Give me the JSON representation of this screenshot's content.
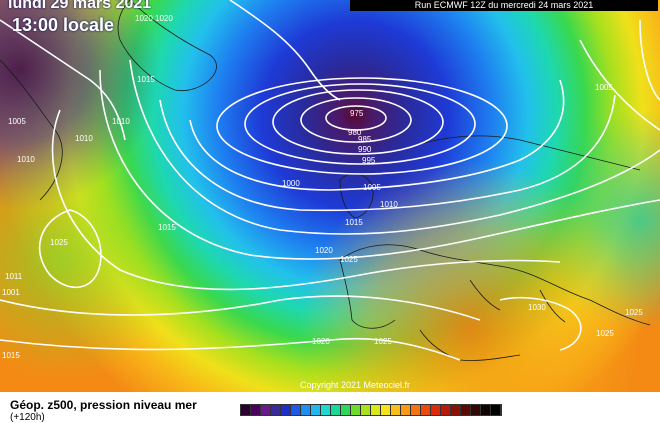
{
  "header": {
    "date": "lundi 29 mars 2021",
    "local_time": "13:00 locale",
    "run": "Run ECMWF 12Z du mercredi 24 mars 2021"
  },
  "footer": {
    "copyright": "Copyright 2021 Meteociel.fr",
    "legend_title": "Géop. z500, pression niveau mer",
    "legend_subtitle": "(+120h)"
  },
  "isobars": [
    {
      "value": "975",
      "id": "iso-975"
    },
    {
      "value": "980",
      "id": "iso-980"
    },
    {
      "value": "985",
      "id": "iso-985"
    },
    {
      "value": "990",
      "id": "iso-990"
    },
    {
      "value": "995",
      "id": "iso-995"
    },
    {
      "value": "1000",
      "id": "iso-1000"
    },
    {
      "value": "1005",
      "id": "iso-1005-a"
    },
    {
      "value": "1005",
      "id": "iso-1005-b"
    },
    {
      "value": "1005",
      "id": "iso-1005-c"
    },
    {
      "value": "1010",
      "id": "iso-1010-a"
    },
    {
      "value": "1010",
      "id": "iso-1010-b"
    },
    {
      "value": "1010",
      "id": "iso-1010-c"
    },
    {
      "value": "1010",
      "id": "iso-1010-d"
    },
    {
      "value": "1015",
      "id": "iso-1015-a"
    },
    {
      "value": "1015",
      "id": "iso-1015-b"
    },
    {
      "value": "1015",
      "id": "iso-1015-c"
    },
    {
      "value": "1015",
      "id": "iso-1015-d"
    },
    {
      "value": "1020",
      "id": "iso-1020-a"
    },
    {
      "value": "1020",
      "id": "iso-1020-b"
    },
    {
      "value": "1020",
      "id": "iso-1020-c"
    },
    {
      "value": "1020",
      "id": "iso-1020-d"
    },
    {
      "value": "1025",
      "id": "iso-1025-a"
    },
    {
      "value": "1025",
      "id": "iso-1025-b"
    },
    {
      "value": "1025",
      "id": "iso-1025-c"
    },
    {
      "value": "1025",
      "id": "iso-1025-d"
    },
    {
      "value": "1025",
      "id": "iso-1025-e"
    },
    {
      "value": "1030",
      "id": "iso-1030"
    },
    {
      "value": "1011",
      "id": "iso-1011"
    },
    {
      "value": "1001",
      "id": "iso-1001"
    }
  ],
  "color_scale": [
    "#2a0030",
    "#4b0060",
    "#6a1a8a",
    "#3a2a9a",
    "#1e2fc8",
    "#1f5ae6",
    "#1e8ef0",
    "#22b7ef",
    "#1fd7d0",
    "#19d99a",
    "#2cd85a",
    "#6ddc2a",
    "#aae01e",
    "#d8e818",
    "#f4e21a",
    "#f8bf18",
    "#f89a14",
    "#f37410",
    "#ec4a0c",
    "#dc2a0a",
    "#b81a08",
    "#8a1006",
    "#5a0a04",
    "#300804",
    "#100402",
    "#000000"
  ],
  "colors": {
    "low_center": "#4a0a26",
    "deep_blue": "#1e2fc8",
    "land_outline": "#1a1a1a"
  }
}
